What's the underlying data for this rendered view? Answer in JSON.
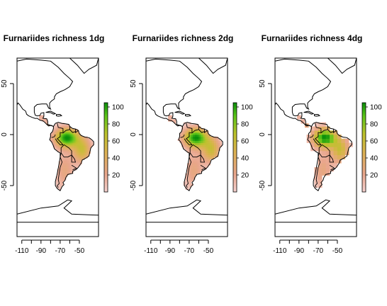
{
  "chart_data": [
    {
      "type": "heatmap",
      "title": "Furnariides richness 1dg",
      "xlabel": "",
      "ylabel": "",
      "xlim": [
        -115,
        -30
      ],
      "ylim": [
        -100,
        75
      ],
      "xticks": [
        -110,
        -90,
        -70,
        -50
      ],
      "yticks": [
        -50,
        0,
        50
      ],
      "legend": {
        "position": "right",
        "min": 0,
        "max": 105,
        "ticks": [
          20,
          40,
          60,
          80,
          100
        ],
        "colors": [
          "#f5d2d0",
          "#e9a68c",
          "#dcb251",
          "#bdc22c",
          "#5cc619",
          "#0a8f0a"
        ]
      },
      "grid": false
    },
    {
      "type": "heatmap",
      "title": "Furnariides richness 2dg",
      "xlabel": "",
      "ylabel": "",
      "xlim": [
        -115,
        -30
      ],
      "ylim": [
        -100,
        75
      ],
      "xticks": [
        -110,
        -90,
        -70,
        -50
      ],
      "yticks": [
        -50,
        0,
        50
      ],
      "legend": {
        "position": "right",
        "min": 0,
        "max": 105,
        "ticks": [
          20,
          40,
          60,
          80,
          100
        ],
        "colors": [
          "#f5d2d0",
          "#e9a68c",
          "#dcb251",
          "#bdc22c",
          "#5cc619",
          "#0a8f0a"
        ]
      },
      "grid": false
    },
    {
      "type": "heatmap",
      "title": "Furnariides richness 4dg",
      "xlabel": "",
      "ylabel": "",
      "xlim": [
        -115,
        -30
      ],
      "ylim": [
        -100,
        75
      ],
      "xticks": [
        -110,
        -90,
        -70,
        -50
      ],
      "yticks": [
        -50,
        0,
        50
      ],
      "legend": {
        "position": "right",
        "min": 0,
        "max": 105,
        "ticks": [
          20,
          40,
          60,
          80,
          100
        ],
        "colors": [
          "#f5d2d0",
          "#e9a68c",
          "#dcb251",
          "#bdc22c",
          "#5cc619",
          "#0a8f0a"
        ]
      },
      "grid": false
    }
  ]
}
